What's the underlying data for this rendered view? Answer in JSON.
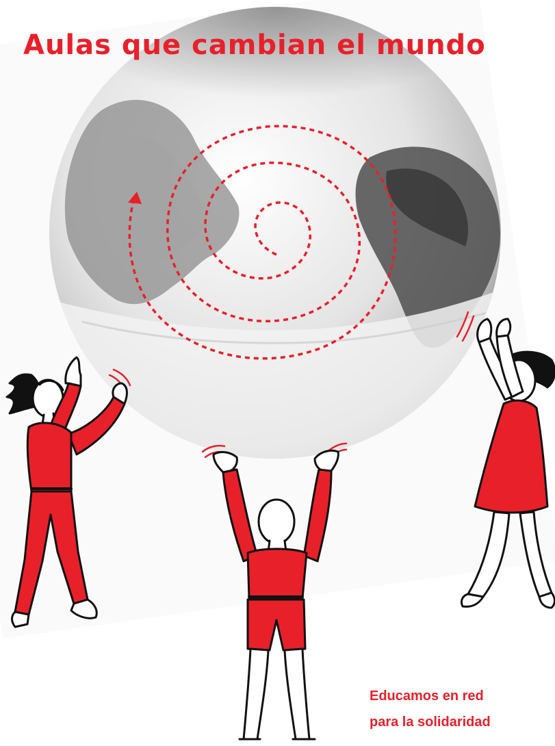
{
  "title": "Aulas que cambian el mundo",
  "slogan": {
    "line1": "Educamos en red",
    "line2": "para la solidaridad"
  },
  "colors": {
    "accent": "#e8202a",
    "outline": "#111111"
  },
  "illustration": {
    "globe": "globe-earth-icon",
    "spiral": "dotted-spiral-arrow-icon",
    "figures": [
      "person-left-icon",
      "person-center-icon",
      "person-right-icon"
    ]
  }
}
